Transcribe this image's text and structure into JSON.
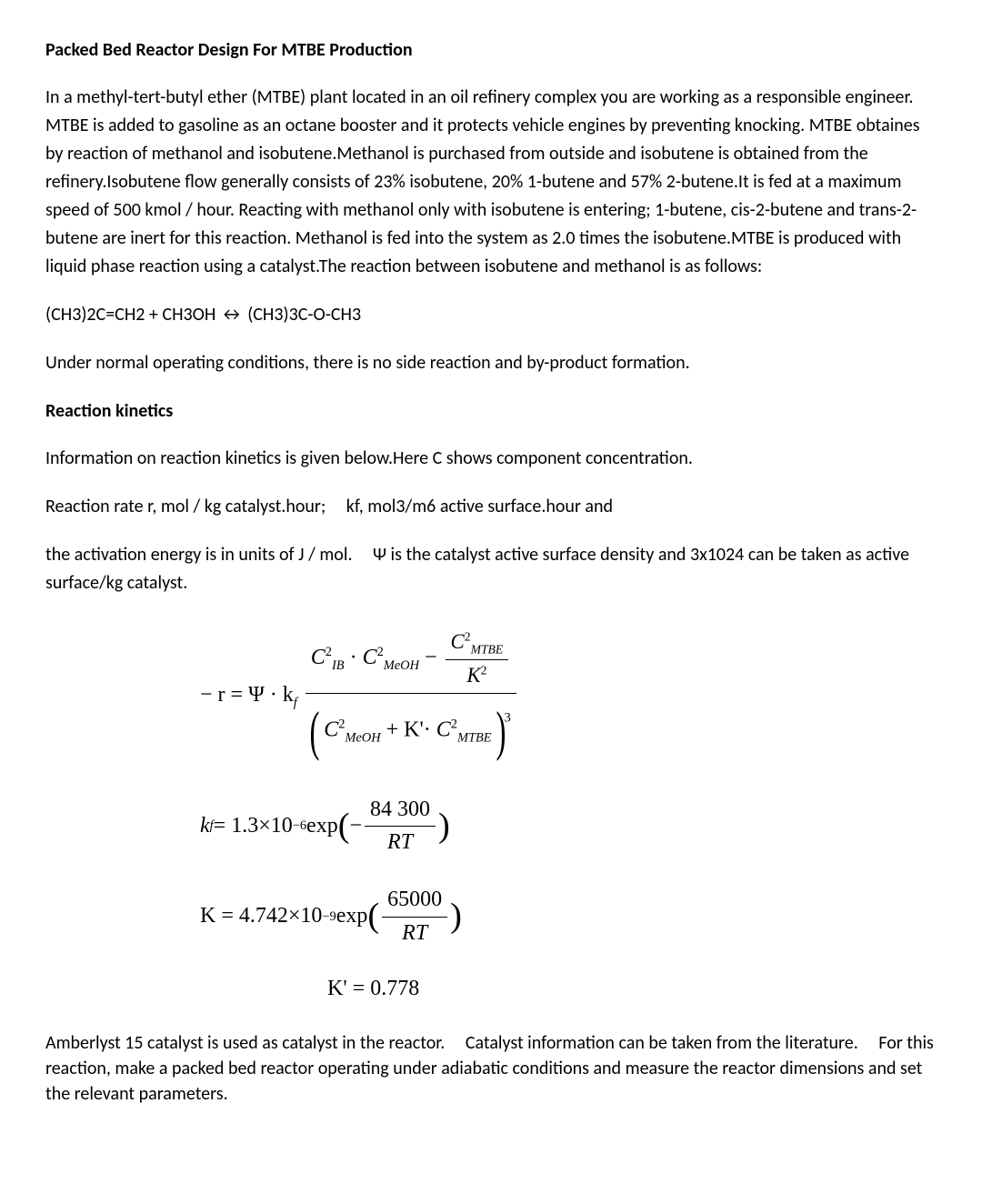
{
  "title": "Packed Bed Reactor Design For MTBE Production",
  "para1": "In a methyl-tert-butyl ether (MTBE) plant located in an oil refinery complex you are working as a responsible engineer. MTBE is added to gasoline as an octane booster and it protects vehicle engines by preventing knocking. MTBE obtaines by reaction of methanol and isobutene.Methanol is purchased from outside and isobutene is obtained from the refinery.Isobutene flow generally consists of 23% isobutene, 20% 1-butene and 57% 2-butene.It is fed at a maximum speed of 500 kmol / hour. Reacting with methanol only with isobutene is entering; 1-butene, cis-2-butene and trans-2-butene are inert for this reaction. Methanol is fed into the system as 2.0 times the isobutene.MTBE is produced with liquid phase reaction using a catalyst.The reaction between isobutene and methanol is as follows:",
  "reaction": "(CH3)2C=CH2 + CH3OH ↔ (CH3)3C-O-CH3",
  "para2": "Under normal operating conditions, there is no side reaction and by-product formation.",
  "sectionHeading": "Reaction kinetics",
  "para3": "Information on reaction kinetics is given below.Here C shows component concentration.",
  "para4_a": "Reaction rate r, mol / kg catalyst.hour;",
  "para4_b": "kf, mol3/m6 active surface.hour and",
  "para5_a": "the activation energy is in units of J / mol.",
  "para5_b": "Ψ is the catalyst active surface density and 3x1024 can be taken as active surface/kg catalyst.",
  "equations": {
    "eq1": {
      "lhs_prefix": "− r = Ψ · k",
      "lhs_sub": "f",
      "num_term1_base": "C",
      "num_term1_sub": "IB",
      "num_term1_sup": "2",
      "num_term2_base": "C",
      "num_term2_sub": "MeOH",
      "num_term2_sup": "2",
      "num_minus": " − ",
      "inner_frac_num_base": "C",
      "inner_frac_num_sub": "MTBE",
      "inner_frac_num_sup": "2",
      "inner_frac_den_base": "K",
      "inner_frac_den_sup": "2",
      "den_term1_base": "C",
      "den_term1_sub": "MeOH",
      "den_term1_sup": "2",
      "den_plus": " + K'·",
      "den_term2_base": "C",
      "den_term2_sub": "MTBE",
      "den_term2_sup": "2",
      "outer_sup": "3"
    },
    "eq2": {
      "lhs_base": "k",
      "lhs_sub": "f",
      "eq": " = 1.3×10",
      "exp_pow": "−6",
      "exp_text": " exp",
      "frac_num": "84 300",
      "frac_den": "RT",
      "minus": "− "
    },
    "eq3": {
      "lhs": "K = 4.742×10",
      "exp_pow": "−9",
      "exp_text": " exp",
      "frac_num": "65000",
      "frac_den": "RT"
    },
    "eq4": {
      "text": "K' = 0.778"
    }
  },
  "finalPara_a": "Amberlyst 15 catalyst is used as catalyst in the reactor.",
  "finalPara_b": "Catalyst information can be taken from the literature.",
  "finalPara_c": "For this reaction, make a packed bed reactor operating under adiabatic conditions and measure the reactor dimensions and set the relevant parameters."
}
